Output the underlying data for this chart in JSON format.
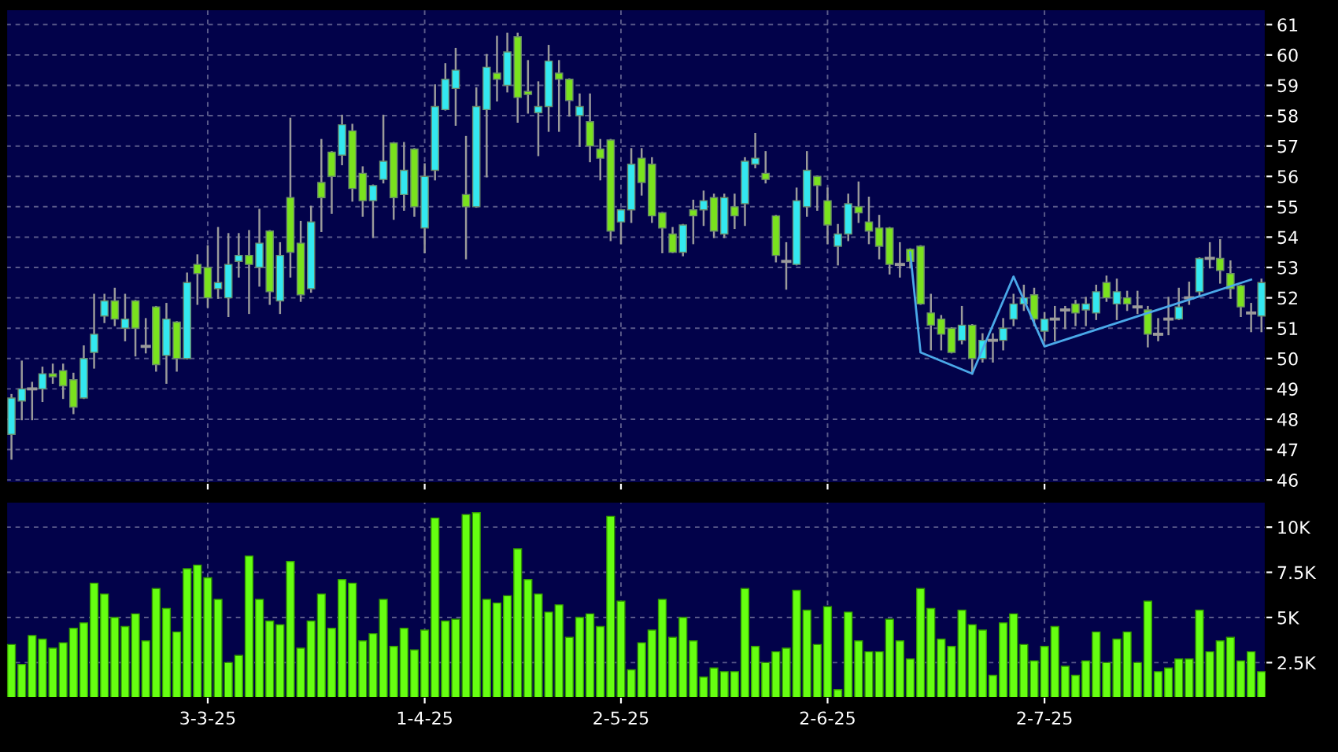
{
  "chart_data": [
    {
      "type": "candlestick",
      "ylim": [
        45.9,
        61.5
      ],
      "yticks": [
        46,
        47,
        48,
        49,
        50,
        51,
        52,
        53,
        54,
        55,
        56,
        57,
        58,
        59,
        60,
        61
      ],
      "tick_labels": "y",
      "grid": true,
      "categories": [
        null,
        null,
        null,
        null,
        null,
        null,
        null,
        null,
        null,
        null,
        null,
        null,
        null,
        null,
        null,
        null,
        null,
        null,
        null,
        null,
        null,
        null,
        null,
        null,
        null,
        null,
        null,
        null,
        null,
        null,
        null,
        null,
        null,
        null,
        null,
        null,
        null,
        null,
        null,
        null,
        null,
        null,
        null,
        null,
        null,
        null,
        null,
        null,
        null,
        null,
        null,
        null,
        null,
        null,
        null,
        null,
        null,
        null,
        null,
        null,
        null,
        null,
        null,
        null,
        null,
        null,
        null,
        null,
        null,
        null,
        null,
        null,
        null,
        null,
        null,
        null,
        null,
        null,
        null,
        null,
        null,
        null,
        null,
        null,
        null,
        null,
        null,
        null,
        null,
        null,
        null,
        null,
        null,
        null,
        null,
        null,
        null,
        null,
        null,
        null,
        null,
        null,
        null,
        null,
        null,
        null,
        null,
        null,
        null,
        null,
        null,
        null,
        null,
        null,
        null,
        null,
        null,
        null,
        null,
        null,
        null,
        null
      ],
      "ohlc": [
        [
          47.5,
          48.8,
          46.7,
          48.7
        ],
        [
          48.6,
          49.9,
          48.0,
          49.0
        ],
        [
          49.0,
          49.2,
          48.0,
          49.0
        ],
        [
          49.0,
          49.7,
          48.6,
          49.5
        ],
        [
          49.5,
          49.8,
          49.2,
          49.4
        ],
        [
          49.6,
          49.8,
          48.7,
          49.1
        ],
        [
          49.3,
          49.5,
          48.2,
          48.4
        ],
        [
          48.7,
          50.4,
          48.7,
          50.0
        ],
        [
          50.2,
          52.1,
          49.7,
          50.8
        ],
        [
          51.4,
          52.1,
          51.2,
          51.9
        ],
        [
          51.9,
          52.3,
          51.1,
          51.3
        ],
        [
          51.0,
          52.1,
          50.6,
          51.3
        ],
        [
          51.9,
          51.9,
          50.1,
          51.0
        ],
        [
          50.4,
          51.3,
          50.2,
          50.4
        ],
        [
          51.7,
          51.7,
          49.6,
          49.8
        ],
        [
          50.1,
          51.8,
          49.2,
          51.3
        ],
        [
          51.2,
          51.2,
          49.6,
          50.0
        ],
        [
          50.0,
          52.8,
          50.0,
          52.5
        ],
        [
          53.1,
          53.4,
          51.8,
          52.8
        ],
        [
          53.0,
          53.7,
          51.7,
          52.0
        ],
        [
          52.3,
          54.3,
          52.0,
          52.5
        ],
        [
          52.0,
          54.1,
          51.4,
          53.1
        ],
        [
          53.2,
          54.1,
          52.7,
          53.4
        ],
        [
          53.4,
          54.2,
          51.5,
          53.1
        ],
        [
          53.0,
          54.9,
          52.4,
          53.8
        ],
        [
          54.2,
          54.2,
          51.8,
          52.2
        ],
        [
          51.9,
          53.8,
          51.5,
          53.4
        ],
        [
          55.3,
          57.9,
          52.7,
          53.5
        ],
        [
          53.8,
          54.5,
          51.9,
          52.1
        ],
        [
          52.3,
          55.0,
          52.2,
          54.5
        ],
        [
          55.8,
          57.2,
          54.2,
          55.3
        ],
        [
          56.8,
          56.8,
          54.8,
          56.0
        ],
        [
          56.7,
          58.0,
          56.4,
          57.7
        ],
        [
          57.5,
          57.7,
          55.2,
          55.6
        ],
        [
          56.1,
          56.3,
          54.7,
          55.2
        ],
        [
          55.2,
          55.7,
          54.0,
          55.7
        ],
        [
          55.9,
          58.0,
          55.8,
          56.5
        ],
        [
          57.1,
          57.1,
          54.6,
          55.3
        ],
        [
          55.4,
          57.1,
          54.9,
          56.2
        ],
        [
          56.9,
          56.9,
          54.7,
          55.0
        ],
        [
          54.3,
          56.4,
          53.5,
          56.0
        ],
        [
          56.2,
          59.0,
          55.9,
          58.3
        ],
        [
          58.2,
          59.7,
          58.2,
          59.2
        ],
        [
          58.9,
          60.2,
          57.7,
          59.5
        ],
        [
          55.4,
          57.3,
          53.3,
          55.0
        ],
        [
          55.0,
          58.9,
          55.0,
          58.3
        ],
        [
          58.2,
          60.0,
          56.0,
          59.6
        ],
        [
          59.4,
          60.6,
          58.5,
          59.2
        ],
        [
          59.0,
          60.7,
          58.8,
          60.1
        ],
        [
          60.6,
          60.7,
          57.8,
          58.6
        ],
        [
          58.8,
          59.8,
          58.1,
          58.7
        ],
        [
          58.1,
          59.1,
          56.7,
          58.3
        ],
        [
          58.3,
          60.3,
          57.5,
          59.8
        ],
        [
          59.4,
          59.8,
          57.5,
          59.2
        ],
        [
          59.2,
          59.2,
          58.0,
          58.5
        ],
        [
          58.0,
          58.7,
          57.0,
          58.3
        ],
        [
          57.8,
          58.7,
          56.5,
          57.0
        ],
        [
          56.9,
          57.2,
          55.9,
          56.6
        ],
        [
          57.2,
          57.2,
          53.9,
          54.2
        ],
        [
          54.5,
          54.9,
          53.8,
          54.9
        ],
        [
          54.9,
          56.9,
          54.5,
          56.4
        ],
        [
          56.6,
          56.9,
          55.4,
          55.8
        ],
        [
          56.4,
          56.6,
          54.5,
          54.7
        ],
        [
          54.8,
          54.8,
          53.5,
          54.3
        ],
        [
          54.1,
          54.3,
          53.5,
          53.5
        ],
        [
          53.5,
          54.4,
          53.4,
          54.4
        ],
        [
          54.9,
          55.2,
          53.8,
          54.7
        ],
        [
          54.9,
          55.5,
          54.4,
          55.2
        ],
        [
          55.3,
          55.4,
          54.0,
          54.2
        ],
        [
          54.1,
          55.4,
          54.0,
          55.3
        ],
        [
          55.0,
          55.4,
          54.3,
          54.7
        ],
        [
          55.1,
          56.6,
          54.4,
          56.5
        ],
        [
          56.4,
          57.4,
          56.3,
          56.6
        ],
        [
          56.1,
          56.8,
          55.8,
          55.9
        ],
        [
          54.7,
          54.7,
          53.2,
          53.4
        ],
        [
          53.2,
          53.8,
          52.3,
          53.2
        ],
        [
          53.1,
          55.6,
          53.1,
          55.2
        ],
        [
          55.0,
          56.8,
          54.7,
          56.2
        ],
        [
          56.0,
          56.0,
          54.9,
          55.7
        ],
        [
          55.2,
          55.6,
          53.8,
          54.4
        ],
        [
          53.7,
          54.4,
          53.1,
          54.1
        ],
        [
          54.1,
          55.4,
          53.9,
          55.1
        ],
        [
          55.0,
          55.8,
          54.5,
          54.8
        ],
        [
          54.5,
          55.3,
          53.8,
          54.2
        ],
        [
          54.3,
          54.7,
          53.3,
          53.7
        ],
        [
          54.3,
          54.3,
          52.8,
          53.1
        ],
        [
          53.1,
          53.8,
          52.7,
          53.1
        ],
        [
          53.6,
          53.6,
          53.0,
          53.2
        ],
        [
          53.7,
          53.7,
          51.8,
          51.8
        ],
        [
          51.5,
          52.1,
          50.3,
          51.1
        ],
        [
          51.3,
          51.4,
          50.3,
          50.8
        ],
        [
          51.0,
          51.0,
          50.2,
          50.2
        ],
        [
          50.6,
          51.7,
          50.5,
          51.1
        ],
        [
          51.1,
          51.1,
          49.5,
          50.0
        ],
        [
          50.0,
          50.8,
          49.9,
          50.6
        ],
        [
          50.6,
          50.8,
          49.9,
          50.6
        ],
        [
          50.6,
          51.3,
          50.3,
          51.0
        ],
        [
          51.3,
          52.1,
          51.1,
          51.8
        ],
        [
          51.8,
          52.4,
          51.6,
          52.0
        ],
        [
          52.1,
          52.3,
          51.1,
          51.3
        ],
        [
          50.9,
          51.5,
          50.6,
          51.3
        ],
        [
          51.3,
          51.7,
          50.6,
          51.3
        ],
        [
          51.6,
          51.7,
          51.0,
          51.6
        ],
        [
          51.8,
          51.9,
          51.1,
          51.5
        ],
        [
          51.6,
          52.0,
          51.1,
          51.8
        ],
        [
          51.5,
          52.4,
          51.3,
          52.2
        ],
        [
          52.5,
          52.7,
          51.9,
          52.0
        ],
        [
          51.8,
          52.6,
          51.3,
          52.2
        ],
        [
          52.0,
          52.2,
          51.6,
          51.8
        ],
        [
          51.7,
          52.2,
          51.5,
          51.7
        ],
        [
          51.6,
          51.7,
          50.4,
          50.8
        ],
        [
          50.8,
          51.3,
          50.6,
          50.8
        ],
        [
          51.3,
          52.0,
          50.8,
          51.3
        ],
        [
          51.3,
          52.3,
          51.3,
          51.7
        ],
        [
          52.0,
          52.5,
          51.8,
          52.0
        ],
        [
          52.2,
          53.3,
          52.1,
          53.3
        ],
        [
          53.3,
          53.8,
          53.0,
          53.3
        ],
        [
          53.3,
          53.9,
          52.5,
          52.9
        ],
        [
          52.8,
          53.2,
          52.0,
          52.3
        ],
        [
          52.4,
          52.4,
          51.4,
          51.7
        ],
        [
          51.5,
          51.8,
          50.9,
          51.5
        ],
        [
          51.4,
          52.6,
          50.9,
          52.5
        ]
      ],
      "colors": [
        "#33e8f0",
        "#33e8f0",
        "#9a9a9a",
        "#33e8f0",
        "#7ae21e",
        "#7ae21e",
        "#7ae21e",
        "#33e8f0",
        "#33e8f0",
        "#33e8f0",
        "#7ae21e",
        "#33e8f0",
        "#7ae21e",
        "#9a9a9a",
        "#7ae21e",
        "#33e8f0",
        "#7ae21e",
        "#33e8f0",
        "#7ae21e",
        "#7ae21e",
        "#33e8f0",
        "#33e8f0",
        "#33e8f0",
        "#7ae21e",
        "#33e8f0",
        "#7ae21e",
        "#33e8f0",
        "#7ae21e",
        "#7ae21e",
        "#33e8f0",
        "#7ae21e",
        "#7ae21e",
        "#33e8f0",
        "#7ae21e",
        "#7ae21e",
        "#33e8f0",
        "#33e8f0",
        "#7ae21e",
        "#33e8f0",
        "#7ae21e",
        "#33e8f0",
        "#33e8f0",
        "#33e8f0",
        "#33e8f0",
        "#7ae21e",
        "#33e8f0",
        "#33e8f0",
        "#7ae21e",
        "#33e8f0",
        "#7ae21e",
        "#7ae21e",
        "#33e8f0",
        "#33e8f0",
        "#7ae21e",
        "#7ae21e",
        "#33e8f0",
        "#7ae21e",
        "#7ae21e",
        "#7ae21e",
        "#33e8f0",
        "#33e8f0",
        "#7ae21e",
        "#7ae21e",
        "#7ae21e",
        "#7ae21e",
        "#33e8f0",
        "#7ae21e",
        "#33e8f0",
        "#7ae21e",
        "#33e8f0",
        "#7ae21e",
        "#33e8f0",
        "#33e8f0",
        "#7ae21e",
        "#7ae21e",
        "#9a9a9a",
        "#33e8f0",
        "#33e8f0",
        "#7ae21e",
        "#7ae21e",
        "#33e8f0",
        "#33e8f0",
        "#7ae21e",
        "#7ae21e",
        "#7ae21e",
        "#7ae21e",
        "#9a9a9a",
        "#7ae21e",
        "#7ae21e",
        "#7ae21e",
        "#7ae21e",
        "#7ae21e",
        "#33e8f0",
        "#7ae21e",
        "#33e8f0",
        "#9a9a9a",
        "#33e8f0",
        "#33e8f0",
        "#33e8f0",
        "#7ae21e",
        "#33e8f0",
        "#9a9a9a",
        "#9a9a9a",
        "#7ae21e",
        "#33e8f0",
        "#33e8f0",
        "#7ae21e",
        "#33e8f0",
        "#7ae21e",
        "#9a9a9a",
        "#7ae21e",
        "#9a9a9a",
        "#9a9a9a",
        "#33e8f0",
        "#9a9a9a",
        "#33e8f0",
        "#9a9a9a",
        "#7ae21e",
        "#7ae21e",
        "#7ae21e",
        "#9a9a9a",
        "#33e8f0"
      ],
      "series": [
        {
          "type": "line",
          "color": "#4aa8e8",
          "values": [
            null,
            null,
            null,
            null,
            null,
            null,
            null,
            null,
            null,
            null,
            null,
            null,
            null,
            null,
            null,
            null,
            null,
            null,
            null,
            null,
            null,
            null,
            null,
            null,
            null,
            null,
            null,
            null,
            null,
            null,
            null,
            null,
            null,
            null,
            null,
            null,
            null,
            null,
            null,
            null,
            null,
            null,
            null,
            null,
            null,
            null,
            null,
            null,
            null,
            null,
            null,
            null,
            null,
            null,
            null,
            null,
            null,
            null,
            null,
            null,
            null,
            null,
            null,
            null,
            null,
            null,
            null,
            null,
            null,
            null,
            null,
            null,
            null,
            null,
            null,
            null,
            null,
            null,
            null,
            null,
            null,
            null,
            null,
            null,
            null,
            null,
            null,
            53.5,
            50.2,
            null,
            null,
            null,
            null,
            49.5,
            null,
            null,
            null,
            52.7,
            null,
            null,
            50.4,
            null,
            null,
            null,
            null,
            null,
            null,
            null,
            null,
            null,
            null,
            null,
            null,
            null,
            null,
            null,
            null,
            null,
            null,
            null,
            52.6,
            null
          ]
        }
      ]
    },
    {
      "type": "bar",
      "color": "#66ff11",
      "ylim": [
        600,
        11400
      ],
      "yticks": [
        {
          "value": 2500,
          "label": "2.5K"
        },
        {
          "value": 5000,
          "label": "5K"
        },
        {
          "value": 7500,
          "label": "7.5K"
        },
        {
          "value": 10000,
          "label": "10K"
        }
      ],
      "grid": true,
      "categories": [
        null,
        null,
        null,
        null,
        null,
        null,
        null,
        null,
        null,
        null,
        null,
        null,
        null,
        null,
        null,
        null,
        null,
        null,
        null,
        "3-3-25",
        null,
        null,
        null,
        null,
        null,
        null,
        null,
        null,
        null,
        null,
        null,
        null,
        null,
        null,
        null,
        null,
        null,
        null,
        null,
        null,
        "1-4-25",
        null,
        null,
        null,
        null,
        null,
        null,
        null,
        null,
        null,
        null,
        null,
        null,
        null,
        null,
        null,
        null,
        null,
        null,
        "2-5-25",
        null,
        null,
        null,
        null,
        null,
        null,
        null,
        null,
        null,
        null,
        null,
        null,
        null,
        null,
        null,
        null,
        null,
        null,
        null,
        "2-6-25",
        null,
        null,
        null,
        null,
        null,
        null,
        null,
        null,
        null,
        null,
        null,
        null,
        null,
        null,
        null,
        null,
        null,
        null,
        null,
        null,
        "2-7-25",
        null,
        null,
        null,
        null,
        null,
        null,
        null,
        null,
        null,
        null,
        null,
        null,
        null,
        null,
        null,
        null,
        null,
        null,
        null,
        null,
        null
      ],
      "values": [
        3500,
        2400,
        4000,
        3800,
        3300,
        3600,
        4400,
        4700,
        6900,
        6300,
        5000,
        4500,
        5200,
        3700,
        6600,
        5500,
        4200,
        7700,
        7900,
        7200,
        6000,
        2500,
        2900,
        8400,
        6000,
        4800,
        4600,
        8100,
        3300,
        4800,
        6300,
        4400,
        7100,
        6900,
        3700,
        4100,
        6000,
        3400,
        4400,
        3200,
        4300,
        10500,
        4800,
        4900,
        10700,
        10800,
        6000,
        5800,
        6200,
        8800,
        7100,
        6300,
        5300,
        5700,
        3900,
        5000,
        5200,
        4500,
        10600,
        5900,
        2100,
        3600,
        4300,
        6000,
        3900,
        5000,
        3700,
        1700,
        2200,
        2000,
        2000,
        6600,
        3400,
        2500,
        3100,
        3300,
        6500,
        5400,
        3500,
        5600,
        1000,
        5300,
        3700,
        3100,
        3100,
        4900,
        3700,
        2700,
        6600,
        5500,
        3800,
        3400,
        5400,
        4600,
        4300,
        1800,
        4700,
        5200,
        3500,
        2600,
        3400,
        4500,
        2300,
        1800,
        2600,
        4200,
        2500,
        3800,
        4200,
        2500,
        5900,
        2000,
        2200,
        2700,
        2700,
        5400,
        3100,
        3700,
        3900,
        2600,
        3100,
        2000
      ]
    }
  ]
}
